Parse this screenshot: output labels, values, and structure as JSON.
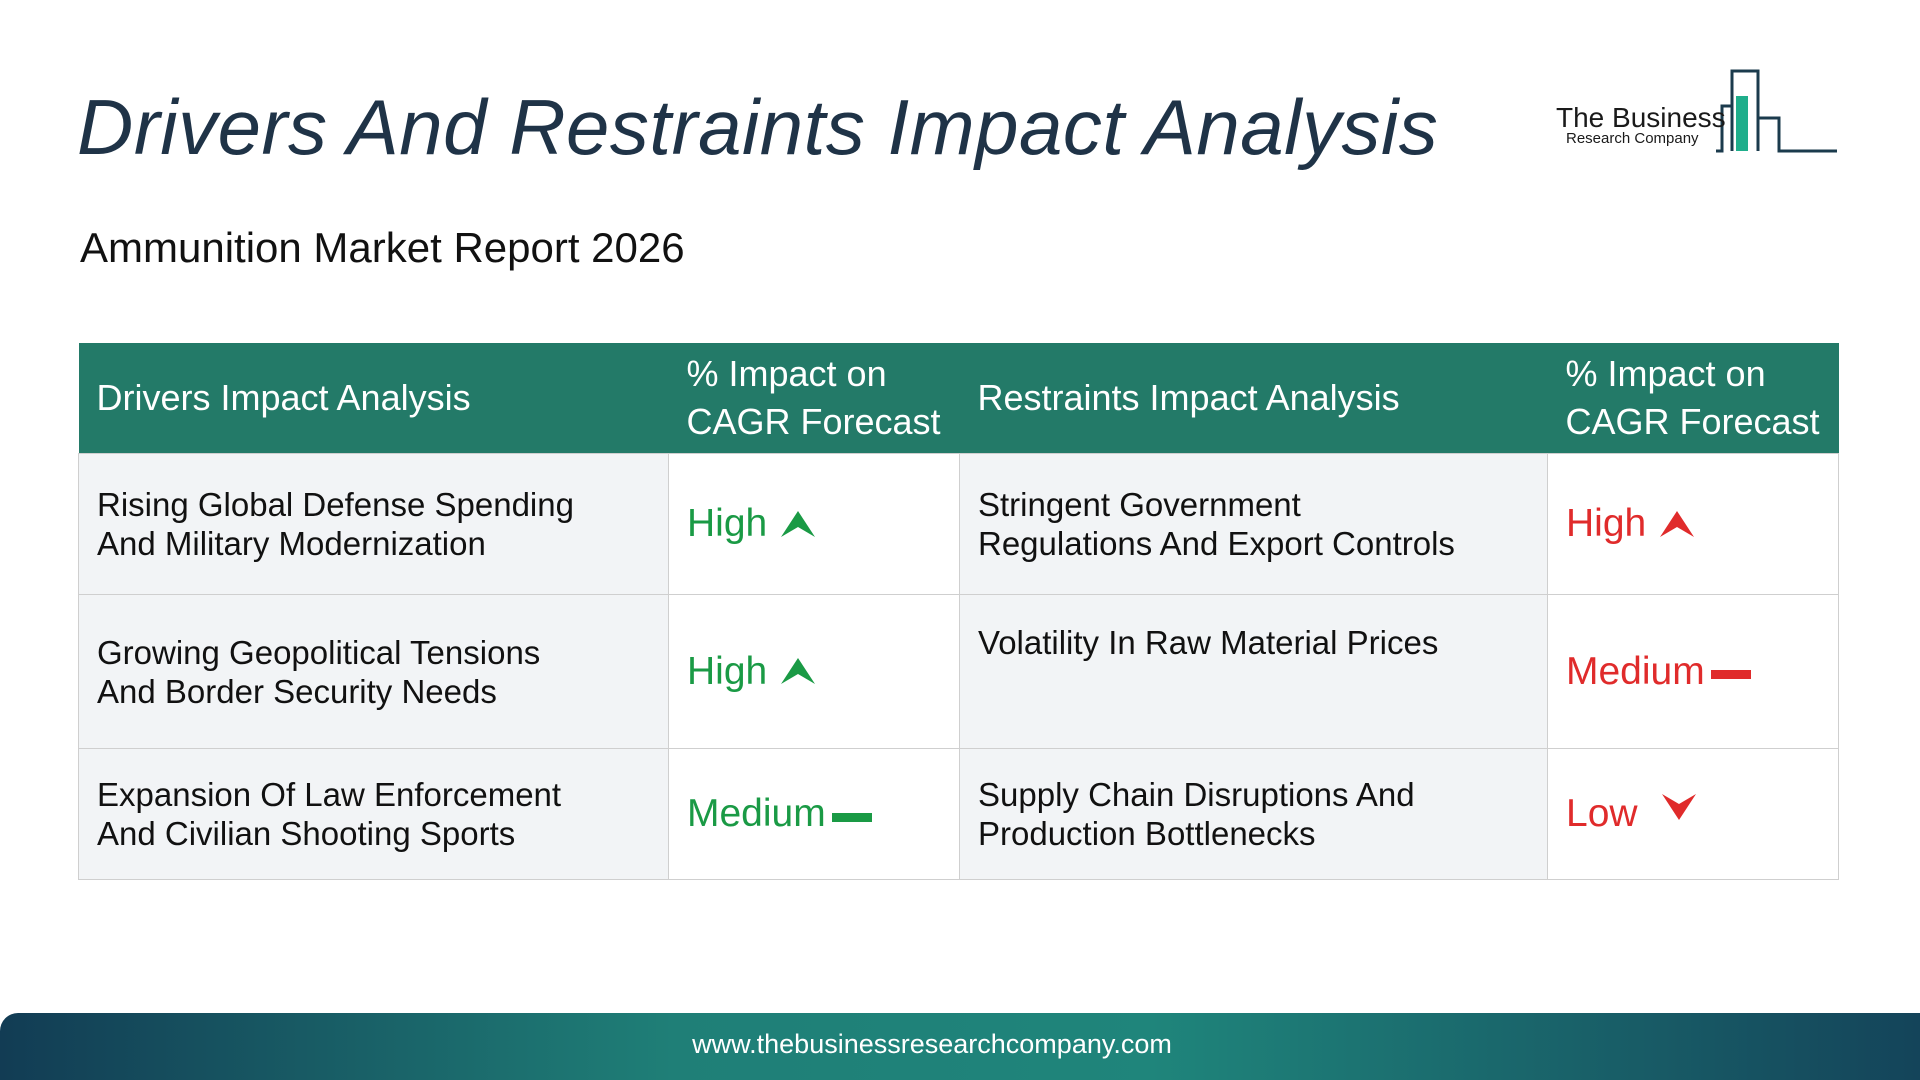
{
  "title": "Drivers And Restraints Impact Analysis",
  "subtitle": "Ammunition Market Report 2026",
  "logo": {
    "line1": "The Business",
    "line2": "Research Company"
  },
  "table": {
    "headers": {
      "drivers": "Drivers Impact Analysis",
      "drivers_impact_line1": "% Impact on",
      "drivers_impact_line2": "CAGR Forecast",
      "restraints": "Restraints Impact Analysis",
      "restraints_impact_line1": "% Impact on",
      "restraints_impact_line2": "CAGR Forecast"
    },
    "rows": [
      {
        "driver_line1": "Rising Global Defense Spending",
        "driver_line2": "And Military Modernization",
        "driver_impact": "High",
        "driver_icon": "up-arrow-icon",
        "restraint_line1": "Stringent Government",
        "restraint_line2": "Regulations And Export Controls",
        "restraint_impact": "High",
        "restraint_icon": "up-arrow-icon"
      },
      {
        "driver_line1": "Growing Geopolitical Tensions",
        "driver_line2": "And Border Security Needs",
        "driver_impact": "High",
        "driver_icon": "up-arrow-icon",
        "restraint_line1": "Volatility In Raw Material Prices",
        "restraint_line2": "",
        "restraint_impact": "Medium",
        "restraint_icon": "dash-icon"
      },
      {
        "driver_line1": "Expansion Of Law Enforcement",
        "driver_line2": "And Civilian Shooting Sports",
        "driver_impact": "Medium",
        "driver_icon": "dash-icon",
        "restraint_line1": "Supply Chain Disruptions And",
        "restraint_line2": "Production Bottlenecks",
        "restraint_impact": "Low",
        "restraint_icon": "down-arrow-icon"
      }
    ]
  },
  "colors": {
    "header_bg": "#237a68",
    "driver_impact": "#1a9a45",
    "restraint_impact": "#e02b2b",
    "title": "#1f3347"
  },
  "footer": {
    "url": "www.thebusinessresearchcompany.com"
  }
}
